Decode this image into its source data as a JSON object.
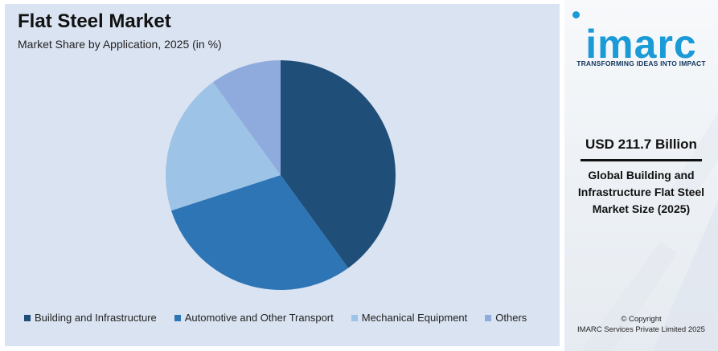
{
  "chart_data": {
    "type": "pie",
    "title": "Flat Steel Market",
    "subtitle": "Market Share by Application, 2025 (in %)",
    "categories": [
      "Building and Infrastructure",
      "Automotive and Other Transport",
      "Mechanical Equipment",
      "Others"
    ],
    "values": [
      40,
      30,
      20,
      10
    ],
    "colors": [
      "#1f4e79",
      "#2e75b6",
      "#9dc3e6",
      "#8faadc"
    ],
    "legend_position": "bottom"
  },
  "sidebar": {
    "logo_text": "imarc",
    "tagline": "TRANSFORMING IDEAS INTO IMPACT",
    "stat_value": "USD 211.7 Billion",
    "stat_description": "Global Building and Infrastructure Flat Steel Market Size (2025)",
    "copyright_line1": "© Copyright",
    "copyright_line2": "IMARC Services Private Limited 2025"
  }
}
